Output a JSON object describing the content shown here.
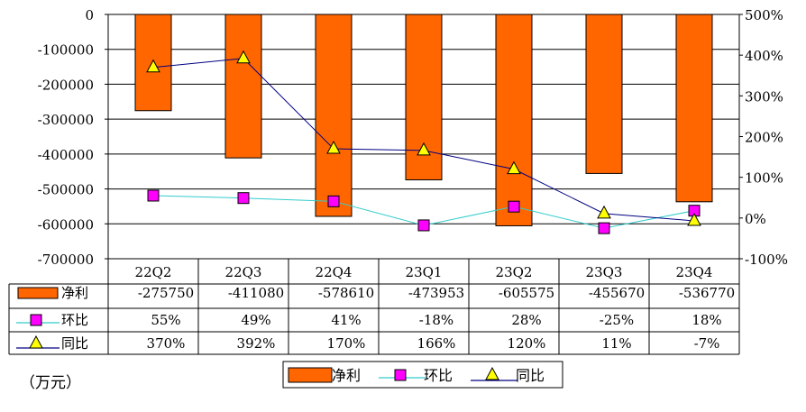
{
  "chart_data": {
    "type": "bar",
    "categories": [
      "22Q2",
      "22Q3",
      "22Q4",
      "23Q1",
      "23Q2",
      "23Q3",
      "23Q4"
    ],
    "series": [
      {
        "name": "净利",
        "type": "bar",
        "axis": "left",
        "color": "#FF6600",
        "values": [
          -275750,
          -411080,
          -578610,
          -473953,
          -605575,
          -455670,
          -536770
        ],
        "table_labels": [
          "-275750",
          "-411080",
          "-578610",
          "-473953",
          "-605575",
          "-455670",
          "-536770"
        ]
      },
      {
        "name": "环比",
        "type": "line",
        "axis": "right",
        "color": "#33CCCC",
        "marker": "square",
        "marker_color": "#FF00FF",
        "values": [
          55,
          49,
          41,
          -18,
          28,
          -25,
          18
        ],
        "table_labels": [
          "55%",
          "49%",
          "41%",
          "-18%",
          "28%",
          "-25%",
          "18%"
        ]
      },
      {
        "name": "同比",
        "type": "line",
        "axis": "right",
        "color": "#000080",
        "marker": "triangle",
        "marker_color": "#FFFF00",
        "values": [
          370,
          392,
          170,
          166,
          120,
          11,
          -7
        ],
        "table_labels": [
          "370%",
          "392%",
          "170%",
          "166%",
          "120%",
          "11%",
          "-7%"
        ]
      }
    ],
    "left_axis": {
      "ylim": [
        -700000,
        0
      ],
      "tick_labels": [
        "0",
        "-100000",
        "-200000",
        "-300000",
        "-400000",
        "-500000",
        "-600000",
        "-700000"
      ]
    },
    "right_axis": {
      "ylim": [
        -100,
        500
      ],
      "tick_labels": [
        "500%",
        "400%",
        "300%",
        "200%",
        "100%",
        "0%",
        "-100%"
      ]
    },
    "grid": true,
    "legend_placement": "bottom-center",
    "unit_label": "（万元）"
  }
}
